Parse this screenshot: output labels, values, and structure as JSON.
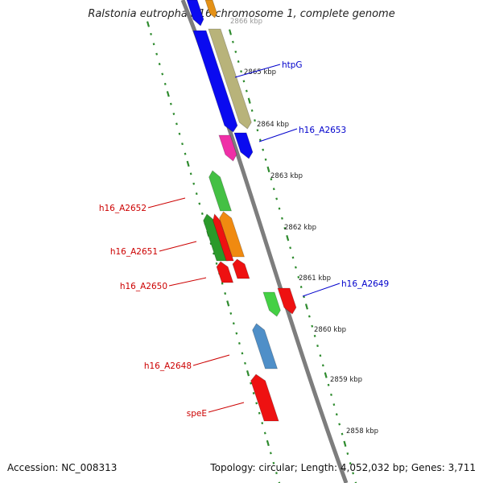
{
  "title": "Ralstonia eutropha H16 chromosome 1, complete genome",
  "footer": {
    "accession": "Accession: NC_008313",
    "summary": "Topology: circular; Length: 4,052,032 bp; Genes: 3,711"
  },
  "colors": {
    "backbone": "#7d7d7d",
    "ruler_tick": "#2e8b2e",
    "label_forward": "#0000cc",
    "label_reverse": "#cc0000",
    "scale_text": "#222222"
  },
  "scale": {
    "unit": "kbp",
    "ticks": [
      "2865 kbp",
      "2864 kbp",
      "2863 kbp",
      "2862 kbp",
      "2861 kbp",
      "2860 kbp",
      "2859 kbp",
      "2858 kbp"
    ],
    "partial_tick": "2866 kbp"
  },
  "gene_labels": {
    "forward": [
      "htpG",
      "h16_A2653",
      "h16_A2649"
    ],
    "reverse": [
      "h16_A2652",
      "h16_A2651",
      "h16_A2650",
      "h16_A2648",
      "speE"
    ]
  },
  "features": [
    {
      "strand": "forward",
      "color": "#0a0af0",
      "icon": "gene-arrow"
    },
    {
      "strand": "forward",
      "color": "#e49116",
      "icon": "gene-arrow"
    },
    {
      "strand": "forward",
      "color": "#b8b37a",
      "icon": "gene-arrow"
    },
    {
      "strand": "forward",
      "color": "#0a0af0",
      "icon": "gene-arrow"
    },
    {
      "strand": "forward",
      "color": "#ef2fa7",
      "icon": "gene-arrow"
    },
    {
      "strand": "forward",
      "color": "#0a0af0",
      "icon": "gene-arrow"
    },
    {
      "strand": "forward",
      "color": "#44d044",
      "icon": "gene-arrow"
    },
    {
      "strand": "reverse",
      "color": "#ee1111",
      "icon": "gene-arrow"
    },
    {
      "strand": "reverse",
      "color": "#44c044",
      "icon": "gene-arrow"
    },
    {
      "strand": "reverse",
      "color": "#2a9a2a",
      "icon": "gene-arrow"
    },
    {
      "strand": "reverse",
      "color": "#ee1111",
      "icon": "gene-arrow"
    },
    {
      "strand": "reverse",
      "color": "#f08a10",
      "icon": "gene-arrow"
    },
    {
      "strand": "reverse",
      "color": "#ee1111",
      "icon": "gene-arrow"
    },
    {
      "strand": "reverse",
      "color": "#ee1111",
      "icon": "gene-arrow"
    },
    {
      "strand": "reverse",
      "color": "#4f8fc8",
      "icon": "gene-arrow"
    },
    {
      "strand": "reverse",
      "color": "#ee1111",
      "icon": "gene-arrow"
    }
  ]
}
